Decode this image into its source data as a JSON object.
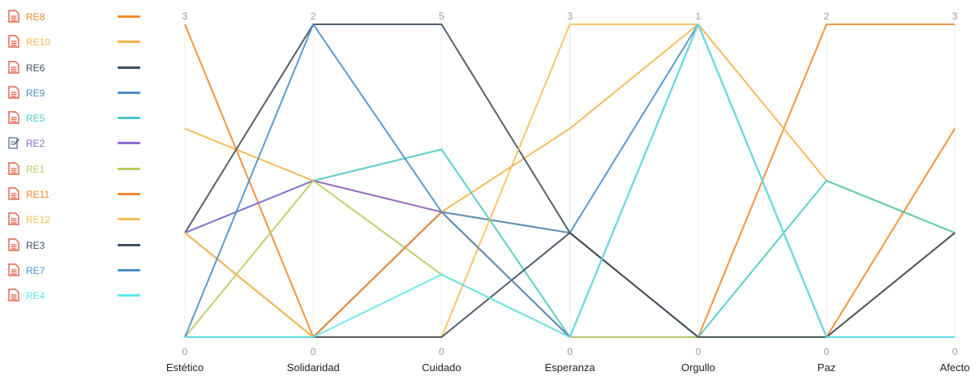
{
  "chart_data": {
    "type": "parallel-coordinates",
    "axes": [
      {
        "name": "Estético",
        "min": 0,
        "max": 3
      },
      {
        "name": "Solidaridad",
        "min": 0,
        "max": 2
      },
      {
        "name": "Cuidado",
        "min": 0,
        "max": 5
      },
      {
        "name": "Esperanza",
        "min": 0,
        "max": 3
      },
      {
        "name": "Orgullo",
        "min": 0,
        "max": 1
      },
      {
        "name": "Paz",
        "min": 0,
        "max": 2
      },
      {
        "name": "Afecto",
        "min": 0,
        "max": 3
      }
    ],
    "series": [
      {
        "name": "RE8",
        "color": "#f08a2c",
        "icon": "document-icon",
        "values": [
          3,
          0,
          2,
          1,
          0,
          2,
          3
        ]
      },
      {
        "name": "RE10",
        "color": "#f5b54a",
        "icon": "document-icon",
        "values": [
          2,
          1,
          2,
          2,
          1,
          1,
          1
        ]
      },
      {
        "name": "RE6",
        "color": "#3f4f5f",
        "icon": "document-icon",
        "values": [
          1,
          2,
          5,
          1,
          0,
          0,
          0
        ]
      },
      {
        "name": "RE9",
        "color": "#4c8fc9",
        "icon": "document-icon",
        "values": [
          1,
          0,
          2,
          1,
          1,
          0,
          1
        ]
      },
      {
        "name": "RE5",
        "color": "#4cc9c3",
        "icon": "document-icon",
        "values": [
          1,
          1,
          3,
          0,
          0,
          1,
          1
        ]
      },
      {
        "name": "RE2",
        "color": "#8a6ad0",
        "icon": "edit-document-icon",
        "values": [
          1,
          1,
          2,
          0,
          0,
          0,
          0
        ]
      },
      {
        "name": "RE1",
        "color": "#b8cc5e",
        "icon": "document-icon",
        "values": [
          0,
          1,
          1,
          0,
          0,
          0,
          1
        ]
      },
      {
        "name": "RE11",
        "color": "#f08a2c",
        "icon": "document-icon",
        "values": [
          1,
          0,
          2,
          0,
          1,
          0,
          2
        ]
      },
      {
        "name": "RE12",
        "color": "#f5c05a",
        "icon": "document-icon",
        "values": [
          1,
          0,
          0,
          3,
          1,
          0,
          1
        ]
      },
      {
        "name": "RE3",
        "color": "#3f4f5f",
        "icon": "document-icon",
        "values": [
          0,
          0,
          0,
          1,
          0,
          0,
          1
        ]
      },
      {
        "name": "RE7",
        "color": "#4c8fc9",
        "icon": "document-icon",
        "values": [
          0,
          2,
          2,
          0,
          1,
          0,
          0
        ]
      },
      {
        "name": "RE4",
        "color": "#5fe8ee",
        "icon": "document-icon",
        "values": [
          0,
          0,
          1,
          0,
          1,
          0,
          0
        ]
      }
    ],
    "legend_placement": "left",
    "grid": false
  }
}
